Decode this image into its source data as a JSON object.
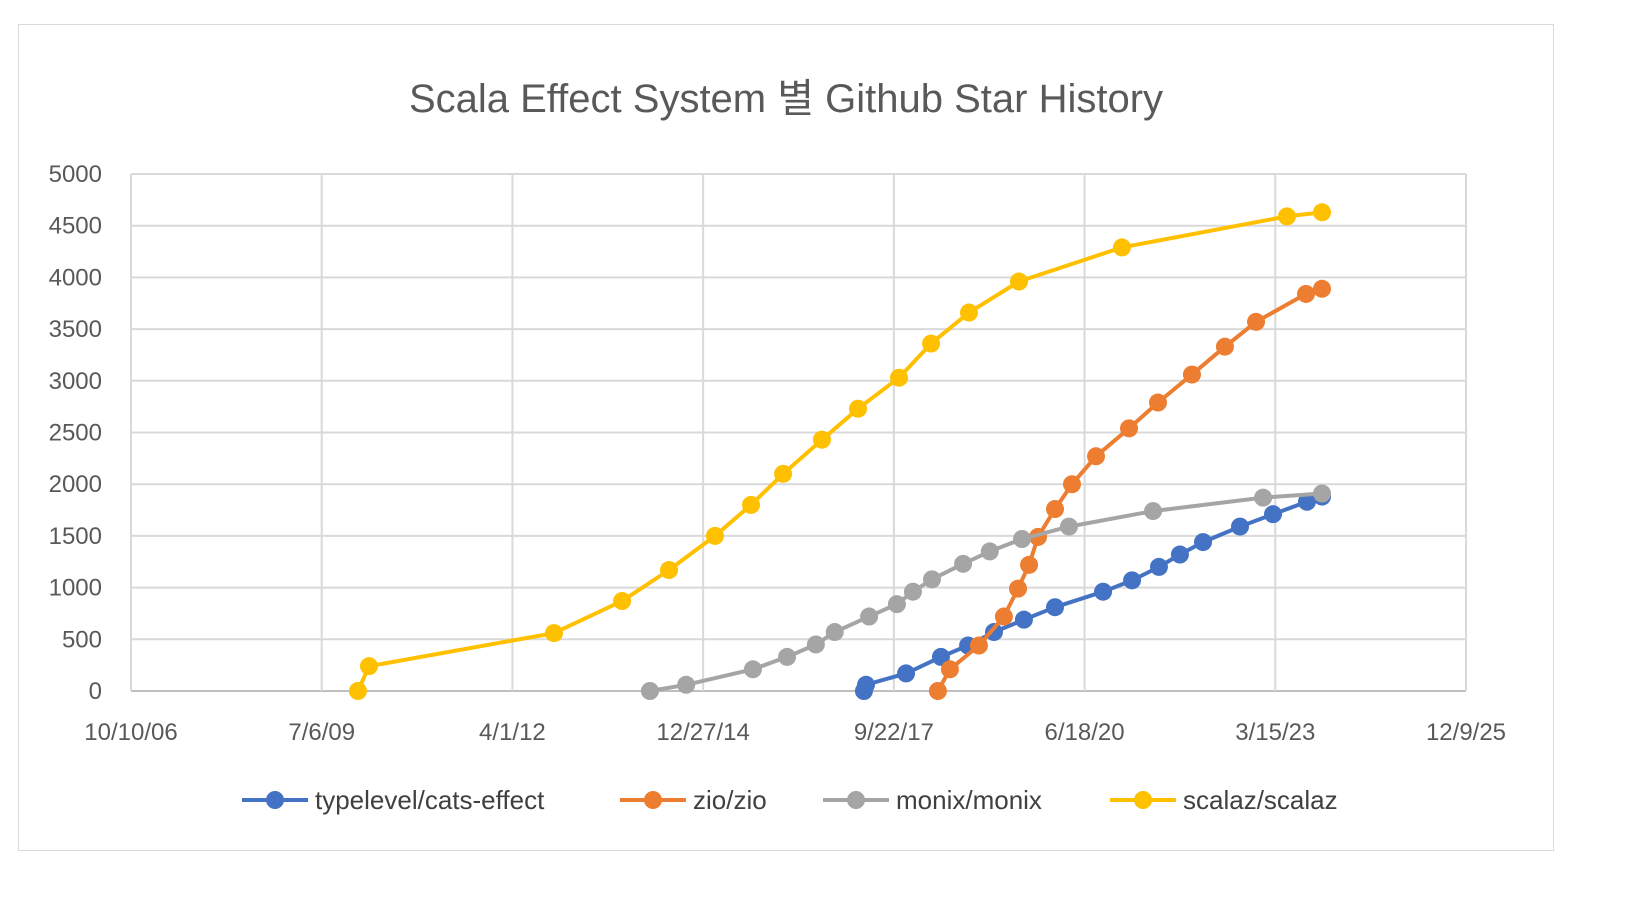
{
  "chart_data": {
    "type": "line",
    "title": "Scala Effect System 별 Github Star History",
    "xlabel": "",
    "ylabel": "",
    "x_axis_type": "date",
    "xlim": [
      "2006-10-10",
      "2025-12-09"
    ],
    "ylim": [
      0,
      5000
    ],
    "x_ticks": [
      "2006-10-10",
      "2009-07-06",
      "2012-04-01",
      "2014-12-27",
      "2017-09-22",
      "2020-06-18",
      "2023-03-15",
      "2025-12-09"
    ],
    "x_tick_labels": [
      "10/10/06",
      "7/6/09",
      "4/1/12",
      "12/27/14",
      "9/22/17",
      "6/18/20",
      "3/15/23",
      "12/9/25"
    ],
    "y_ticks": [
      0,
      500,
      1000,
      1500,
      2000,
      2500,
      3000,
      3500,
      4000,
      4500,
      5000
    ],
    "grid": true,
    "legend_position": "bottom",
    "series": [
      {
        "name": "typelevel/cats-effect",
        "color": "#4472c4",
        "x": [
          "2017-04-18",
          "2017-04-29",
          "2017-11-25",
          "2018-05-27",
          "2018-10-16",
          "2019-03-01",
          "2019-08-05",
          "2020-01-15",
          "2020-09-23",
          "2021-02-22",
          "2021-07-13",
          "2021-10-31",
          "2022-03-01",
          "2022-09-11",
          "2023-03-03",
          "2023-08-28",
          "2023-11-15"
        ],
        "y": [
          0,
          60,
          170,
          330,
          440,
          570,
          690,
          810,
          960,
          1070,
          1200,
          1320,
          1440,
          1590,
          1710,
          1830,
          1880
        ]
      },
      {
        "name": "zio/zio",
        "color": "#ed7d31",
        "x": [
          "2018-05-11",
          "2018-07-13",
          "2018-12-12",
          "2019-04-22",
          "2019-07-05",
          "2019-09-01",
          "2019-10-18",
          "2020-01-15",
          "2020-04-13",
          "2020-08-17",
          "2021-02-06",
          "2021-07-08",
          "2022-01-02",
          "2022-06-24",
          "2022-12-04",
          "2023-08-23",
          "2023-11-15"
        ],
        "y": [
          0,
          210,
          440,
          720,
          990,
          1220,
          1490,
          1760,
          2000,
          2270,
          2540,
          2790,
          3060,
          3330,
          3570,
          3840,
          3890
        ]
      },
      {
        "name": "monix/monix",
        "color": "#a5a5a5",
        "x": [
          "2014-03-23",
          "2014-09-29",
          "2015-09-14",
          "2016-03-11",
          "2016-08-09",
          "2016-11-16",
          "2017-05-15",
          "2017-10-08",
          "2017-12-31",
          "2018-04-10",
          "2018-09-20",
          "2019-02-07",
          "2019-07-26",
          "2020-03-28",
          "2021-06-12",
          "2023-01-10",
          "2023-11-15"
        ],
        "y": [
          0,
          60,
          210,
          330,
          450,
          570,
          720,
          840,
          960,
          1080,
          1230,
          1350,
          1470,
          1590,
          1740,
          1870,
          1910
        ]
      },
      {
        "name": "scalaz/scalaz",
        "color": "#ffc000",
        "x": [
          "2010-01-12",
          "2010-03-11",
          "2012-11-05",
          "2013-10-28",
          "2014-07-01",
          "2015-02-27",
          "2015-09-04",
          "2016-02-19",
          "2016-09-10",
          "2017-03-18",
          "2017-10-19",
          "2018-04-05",
          "2018-10-21",
          "2019-07-10",
          "2020-12-31",
          "2023-05-15",
          "2023-11-15"
        ],
        "y": [
          0,
          240,
          560,
          870,
          1170,
          1500,
          1800,
          2100,
          2430,
          2730,
          3030,
          3360,
          3660,
          3960,
          4290,
          4590,
          4630
        ]
      }
    ]
  }
}
